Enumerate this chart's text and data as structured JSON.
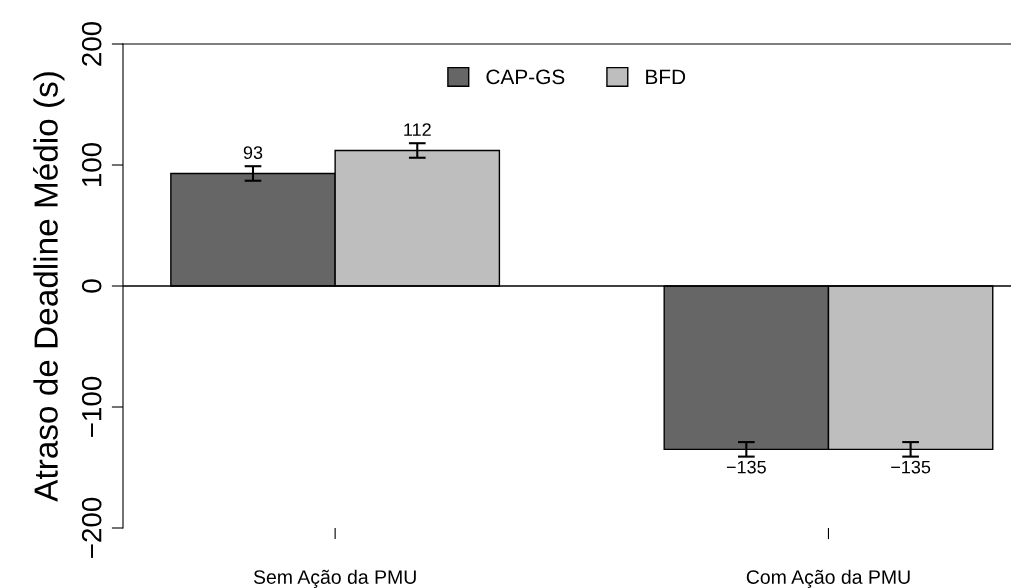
{
  "chart_data": {
    "type": "bar",
    "ylabel": "Atraso de Deadline Médio (s)",
    "categories": [
      "Sem Ação da PMU",
      "Com Ação da PMU"
    ],
    "series": [
      {
        "name": "CAP-GS",
        "color": "#666666",
        "values": [
          93,
          -135
        ],
        "errors": [
          6,
          6
        ]
      },
      {
        "name": "BFD",
        "color": "#bebebe",
        "values": [
          112,
          -135
        ],
        "errors": [
          6,
          6
        ]
      }
    ],
    "ylim": [
      -200,
      200
    ],
    "yticks": [
      -200,
      -100,
      0,
      100,
      200
    ],
    "ref_lines": [
      {
        "axis": "y",
        "value": 0
      }
    ],
    "data_labels": true,
    "legend": "top",
    "grid": false
  }
}
